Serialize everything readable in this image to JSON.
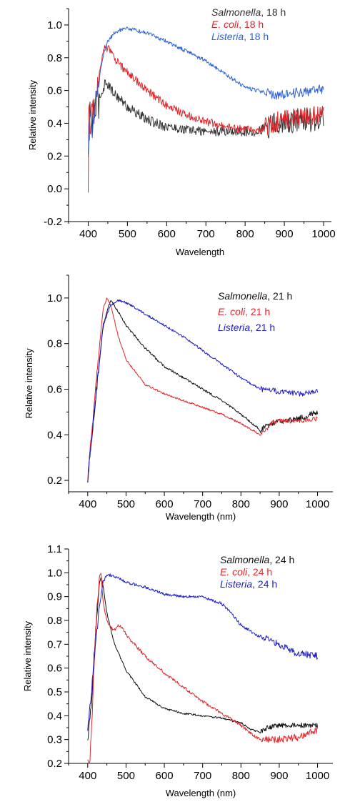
{
  "chart_data": [
    {
      "type": "line",
      "xlabel": "Wavelength",
      "ylabel": "Relative intensity",
      "xlim": [
        350,
        1020
      ],
      "ylim": [
        -0.2,
        1.1
      ],
      "xticks": [
        400,
        500,
        600,
        700,
        800,
        900,
        1000
      ],
      "yticks": [
        -0.2,
        0.0,
        0.2,
        0.4,
        0.6,
        0.8,
        1.0
      ],
      "ytick_decimals": 1,
      "legend_position": "top-right",
      "series": [
        {
          "name_italic": "Salmonella",
          "name_suffix": ", 18 h",
          "color": "#333333",
          "noise": 0.03,
          "x": [
            400,
            405,
            410,
            415,
            420,
            430,
            440,
            445,
            450,
            460,
            480,
            500,
            550,
            600,
            650,
            700,
            750,
            800,
            830,
            850,
            870,
            900,
            950,
            1000
          ],
          "y": [
            0.18,
            0.45,
            0.4,
            0.5,
            0.48,
            0.56,
            0.62,
            0.66,
            0.64,
            0.6,
            0.55,
            0.5,
            0.42,
            0.38,
            0.36,
            0.35,
            0.35,
            0.35,
            0.35,
            0.37,
            0.39,
            0.41,
            0.42,
            0.43
          ]
        },
        {
          "name_italic": "E. coli",
          "name_suffix": ", 18 h",
          "color": "#e0262b",
          "noise": 0.025,
          "x": [
            400,
            402,
            405,
            410,
            415,
            420,
            430,
            440,
            450,
            460,
            480,
            500,
            550,
            600,
            650,
            700,
            750,
            800,
            830,
            850,
            870,
            900,
            950,
            1000
          ],
          "y": [
            -0.05,
            0.55,
            0.35,
            0.6,
            0.4,
            0.6,
            0.75,
            0.85,
            0.86,
            0.82,
            0.76,
            0.71,
            0.6,
            0.51,
            0.45,
            0.41,
            0.38,
            0.36,
            0.36,
            0.37,
            0.4,
            0.42,
            0.44,
            0.46
          ]
        },
        {
          "name_italic": "Listeria",
          "name_suffix": ", 18 h",
          "color": "#2d63d6",
          "noise": 0.012,
          "x": [
            400,
            405,
            410,
            420,
            430,
            440,
            450,
            470,
            500,
            550,
            600,
            650,
            700,
            750,
            800,
            830,
            850,
            880,
            900,
            950,
            1000
          ],
          "y": [
            0.18,
            0.45,
            0.35,
            0.55,
            0.7,
            0.82,
            0.9,
            0.96,
            0.98,
            0.95,
            0.9,
            0.84,
            0.78,
            0.7,
            0.62,
            0.6,
            0.59,
            0.57,
            0.58,
            0.59,
            0.61
          ]
        }
      ]
    },
    {
      "type": "line",
      "xlabel": "Wavelength (nm)",
      "ylabel": "Relative intensity",
      "xlim": [
        350,
        1040
      ],
      "ylim": [
        0.15,
        1.1
      ],
      "xticks": [
        400,
        500,
        600,
        700,
        800,
        900,
        1000
      ],
      "yticks": [
        0.2,
        0.4,
        0.6,
        0.8,
        1.0
      ],
      "ytick_decimals": 1,
      "legend_position": "top-right",
      "series": [
        {
          "name_italic": "Salmonella",
          "name_suffix": ", 21 h",
          "color": "#111111",
          "noise": 0.005,
          "x": [
            400,
            420,
            440,
            450,
            460,
            480,
            500,
            550,
            600,
            650,
            700,
            750,
            800,
            830,
            850,
            860,
            880,
            900,
            950,
            1000
          ],
          "y": [
            0.21,
            0.55,
            0.87,
            0.94,
            0.99,
            0.94,
            0.88,
            0.78,
            0.7,
            0.65,
            0.6,
            0.55,
            0.49,
            0.45,
            0.42,
            0.43,
            0.45,
            0.46,
            0.47,
            0.5
          ]
        },
        {
          "name_italic": "E. coli",
          "name_suffix": ", 21 h",
          "color": "#e0262b",
          "noise": 0.004,
          "x": [
            400,
            420,
            440,
            450,
            460,
            480,
            500,
            550,
            600,
            650,
            700,
            750,
            800,
            830,
            850,
            860,
            880,
            900,
            950,
            1000
          ],
          "y": [
            0.21,
            0.6,
            0.95,
            1.0,
            0.97,
            0.83,
            0.73,
            0.62,
            0.58,
            0.55,
            0.52,
            0.49,
            0.45,
            0.42,
            0.4,
            0.41,
            0.45,
            0.46,
            0.46,
            0.47
          ]
        },
        {
          "name_italic": "Listeria",
          "name_suffix": ", 21 h",
          "color": "#1f1fc4",
          "noise": 0.005,
          "x": [
            400,
            420,
            440,
            460,
            480,
            500,
            550,
            600,
            650,
            700,
            750,
            800,
            830,
            850,
            870,
            900,
            950,
            1000
          ],
          "y": [
            0.21,
            0.55,
            0.88,
            0.97,
            0.99,
            0.98,
            0.93,
            0.88,
            0.83,
            0.77,
            0.71,
            0.65,
            0.62,
            0.6,
            0.6,
            0.59,
            0.58,
            0.59
          ]
        }
      ]
    },
    {
      "type": "line",
      "xlabel": "Wavelength (nm)",
      "ylabel": "Relative intensity",
      "xlim": [
        350,
        1040
      ],
      "ylim": [
        0.2,
        1.1
      ],
      "xticks": [
        400,
        500,
        600,
        700,
        800,
        900,
        1000
      ],
      "yticks": [
        0.2,
        0.3,
        0.4,
        0.5,
        0.6,
        0.7,
        0.8,
        0.9,
        1.0,
        1.1
      ],
      "ytick_decimals": 1,
      "legend_position": "top-right",
      "series": [
        {
          "name_italic": "Salmonella",
          "name_suffix": ", 24 h",
          "color": "#111111",
          "noise": 0.004,
          "x": [
            400,
            410,
            420,
            430,
            435,
            440,
            450,
            470,
            500,
            550,
            600,
            650,
            700,
            750,
            800,
            830,
            850,
            870,
            900,
            950,
            1000
          ],
          "y": [
            0.3,
            0.45,
            0.75,
            0.95,
            0.98,
            0.95,
            0.83,
            0.7,
            0.59,
            0.48,
            0.43,
            0.41,
            0.4,
            0.39,
            0.37,
            0.34,
            0.33,
            0.35,
            0.36,
            0.36,
            0.36
          ]
        },
        {
          "name_italic": "E. coli",
          "name_suffix": ", 24 h",
          "color": "#e0262b",
          "noise": 0.006,
          "x": [
            400,
            405,
            410,
            420,
            430,
            435,
            440,
            450,
            460,
            470,
            480,
            490,
            500,
            550,
            600,
            650,
            700,
            750,
            800,
            830,
            850,
            870,
            900,
            950,
            1000
          ],
          "y": [
            0.22,
            0.2,
            0.35,
            0.75,
            0.98,
            1.0,
            0.88,
            0.8,
            0.77,
            0.76,
            0.78,
            0.77,
            0.74,
            0.65,
            0.58,
            0.52,
            0.46,
            0.41,
            0.36,
            0.32,
            0.3,
            0.3,
            0.3,
            0.31,
            0.34
          ]
        },
        {
          "name_italic": "Listeria",
          "name_suffix": ", 24 h",
          "color": "#1f1fc4",
          "noise": 0.006,
          "x": [
            400,
            410,
            420,
            430,
            440,
            450,
            460,
            480,
            500,
            550,
            600,
            650,
            700,
            750,
            780,
            800,
            830,
            850,
            870,
            900,
            950,
            1000
          ],
          "y": [
            0.34,
            0.5,
            0.7,
            0.85,
            0.96,
            0.99,
            0.99,
            0.98,
            0.96,
            0.94,
            0.91,
            0.9,
            0.9,
            0.87,
            0.82,
            0.78,
            0.75,
            0.73,
            0.72,
            0.7,
            0.66,
            0.65
          ]
        }
      ]
    }
  ]
}
